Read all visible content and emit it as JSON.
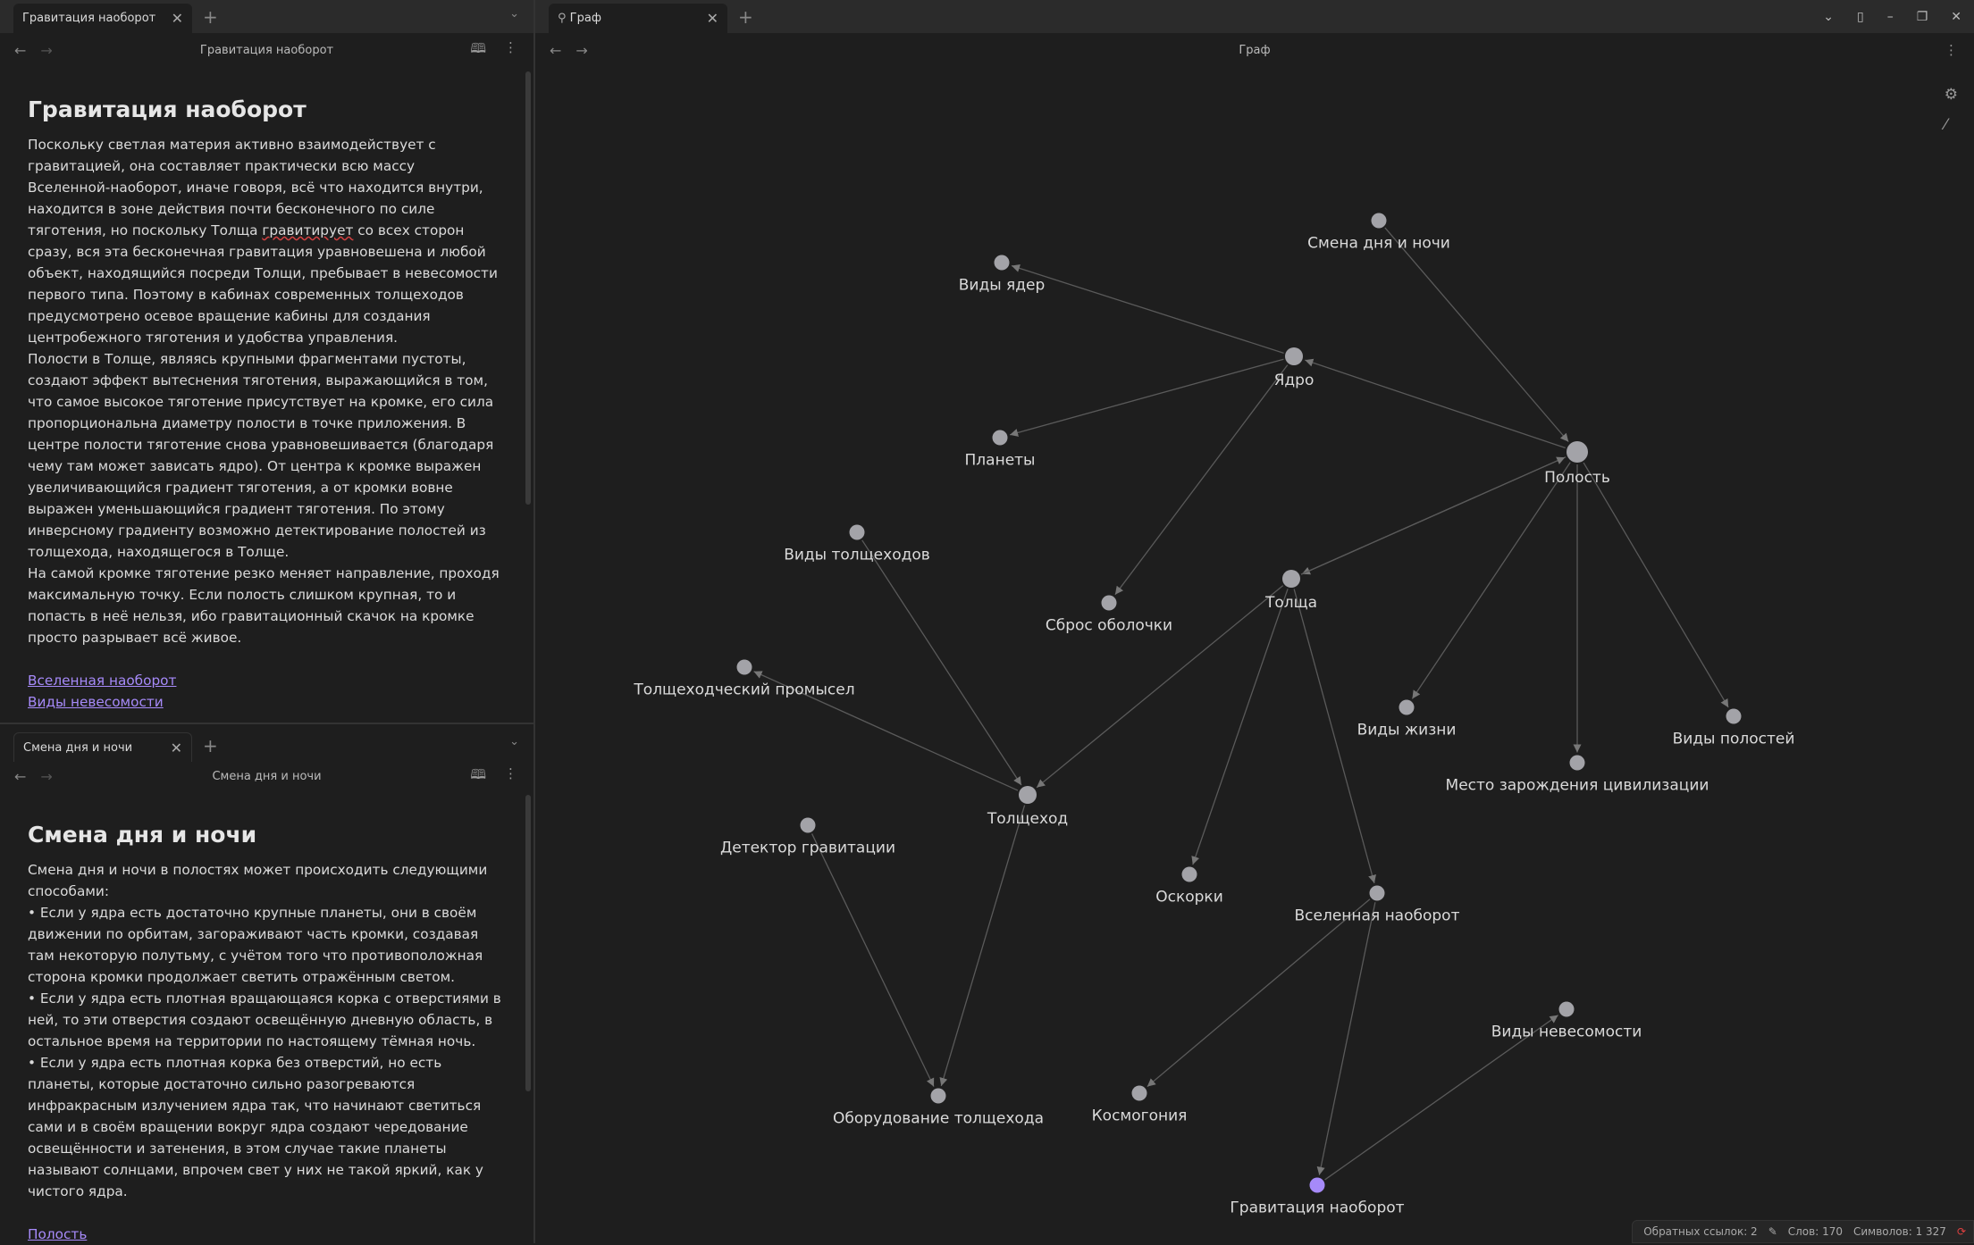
{
  "left_top": {
    "tab_label": "Гравитация наоборот",
    "nav_title": "Гравитация наоборот",
    "title": "Гравитация наоборот",
    "paragraphs": [
      "Поскольку светлая материя активно взаимодействует с гравитацией, она составляет практически всю массу Вселенной-наоборот, иначе говоря, всё что находится внутри, находится в зоне действия почти бесконечного по силе тяготения, но поскольку Толща ",
      "гравитирует",
      " со всех сторон сразу, вся эта бесконечная гравитация уравновешена и любой объект, находящийся посреди Толщи, пребывает в невесомости первого типа. Поэтому в кабинах современных толщеходов предусмотрено осевое вращение кабины для создания центробежного тяготения и удобства управления.",
      "Полости в Толще, являясь крупными фрагментами пустоты, создают эффект вытеснения тяготения, выражающийся в том, что самое высокое тяготение присутствует на кромке, его сила пропорциональна диаметру полости в точке приложения. В центре полости тяготение снова уравновешивается (благодаря чему там может зависать ядро). От центра к кромке выражен увеличивающийся градиент тяготения, а от кромки вовне выражен уменьшающийся градиент тяготения. По этому инверсному градиенту возможно детектирование полостей из толщехода, находящегося в Толще.",
      "На самой кромке тяготение резко меняет направление, проходя максимальную точку. Если полость слишком крупная, то и попасть в неё нельзя, ибо гравитационный скачок на кромке просто разрывает всё живое."
    ],
    "links": [
      "Вселенная наоборот",
      "Виды невесомости"
    ]
  },
  "left_bottom": {
    "tab_label": "Смена дня и ночи",
    "nav_title": "Смена дня и ночи",
    "title": "Смена дня и ночи",
    "paragraphs": [
      "Смена дня и ночи в полостях может происходить следующими способами:",
      "• Если у ядра есть достаточно крупные планеты, они в своём движении по орбитам, загораживают часть кромки, создавая там некоторую полутьму, с учётом того что противоположная сторона кромки продолжает светить отражённым светом.",
      "• Если у ядра есть плотная вращающаяся корка с отверстиями в ней, то эти отверстия создают освещённую дневную область, в остальное время на территории по настоящему тёмная ночь.",
      "• Если у ядра есть плотная корка без отверстий, но есть планеты, которые достаточно сильно разогреваются инфракрасным излучением ядра так, что начинают светиться сами и в своём вращении вокруг ядра создают чередование освещённости и затенения, в этом случае такие планеты называют солнцами, впрочем свет у них не такой яркий, как у чистого ядра."
    ],
    "links": [
      "Полость"
    ]
  },
  "graph_pane": {
    "tab_label": "Граф",
    "nav_title": "Граф",
    "tab_icon": "graph-icon",
    "nodes": [
      "Смена дня и ночи",
      "Виды ядер",
      "Ядро",
      "Планеты",
      "Полость",
      "Виды толщеходов",
      "Сброс оболочки",
      "Толща",
      "Толщеходческий промысел",
      "Виды жизни",
      "Виды полостей",
      "Место зарождения цивилизации",
      "Толщеход",
      "Детектор гравитации",
      "Оскорки",
      "Вселенная наоборот",
      "Виды невесомости",
      "Оборудование толщехода",
      "Космогония",
      "Гравитация наоборот"
    ],
    "active_node": "Гравитация наоборот",
    "edges": [
      [
        0,
        4
      ],
      [
        2,
        1
      ],
      [
        2,
        3
      ],
      [
        2,
        6
      ],
      [
        4,
        2
      ],
      [
        4,
        7
      ],
      [
        4,
        9
      ],
      [
        4,
        11
      ],
      [
        4,
        10
      ],
      [
        7,
        12
      ],
      [
        7,
        14
      ],
      [
        7,
        15
      ],
      [
        12,
        8
      ],
      [
        5,
        12
      ],
      [
        12,
        17
      ],
      [
        13,
        17
      ],
      [
        15,
        18
      ],
      [
        15,
        19
      ],
      [
        19,
        16
      ],
      [
        7,
        4
      ]
    ],
    "colors": {
      "node": "#a3a3a8",
      "active": "#a68af9",
      "edge": "#5a5a5a",
      "link": "#a68af9"
    }
  },
  "status_bar": {
    "backlinks": "Обратных ссылок: 2",
    "words": "Слов: 170",
    "chars": "Символов: 1 327"
  }
}
